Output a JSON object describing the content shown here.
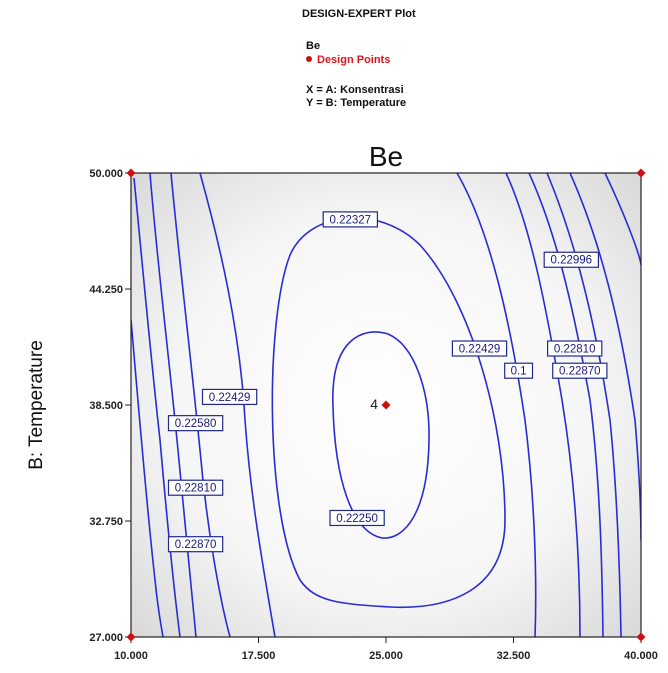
{
  "header": {
    "software": "DESIGN-EXPERT Plot",
    "response": "Be",
    "design_points_label": "Design Points",
    "x_def": "X = A: Konsentrasi",
    "y_def": "Y = B: Temperature"
  },
  "colors": {
    "contour": "#2b2bd6",
    "design_point": "#cc1010",
    "label_text": "#1a1a7a"
  },
  "chart_data": {
    "type": "contour",
    "title": "Be",
    "xlabel": "",
    "ylabel": "B: Temperature",
    "xlim": [
      10.0,
      40.0
    ],
    "ylim": [
      27.0,
      50.0
    ],
    "x_ticks": [
      "10.000",
      "17.500",
      "25.000",
      "32.500",
      "40.000"
    ],
    "y_ticks": [
      "27.000",
      "32.750",
      "38.500",
      "44.250",
      "50.000"
    ],
    "x_tick_values": [
      10.0,
      17.5,
      25.0,
      32.5,
      40.0
    ],
    "y_tick_values": [
      27.0,
      32.75,
      38.5,
      44.25,
      50.0
    ],
    "contour_labels": [
      {
        "text": "0.22327",
        "x": 22.9,
        "y": 47.7
      },
      {
        "text": "0.22996",
        "x": 35.9,
        "y": 45.7
      },
      {
        "text": "0.22429",
        "x": 30.5,
        "y": 41.3
      },
      {
        "text": "0.22810",
        "x": 36.1,
        "y": 41.3
      },
      {
        "text": "0.1",
        "x": 32.8,
        "y": 40.2
      },
      {
        "text": "0.22870",
        "x": 36.4,
        "y": 40.2
      },
      {
        "text": "0.22429",
        "x": 15.8,
        "y": 38.9
      },
      {
        "text": "0.22580",
        "x": 13.8,
        "y": 37.6
      },
      {
        "text": "0.22810",
        "x": 13.8,
        "y": 34.4
      },
      {
        "text": "0.22250",
        "x": 23.3,
        "y": 32.9
      },
      {
        "text": "0.22870",
        "x": 13.8,
        "y": 31.6
      }
    ],
    "design_points": [
      {
        "x": 10.0,
        "y": 27.0
      },
      {
        "x": 10.0,
        "y": 50.0
      },
      {
        "x": 40.0,
        "y": 27.0
      },
      {
        "x": 40.0,
        "y": 50.0
      },
      {
        "x": 25.0,
        "y": 38.5,
        "label": "4"
      }
    ]
  }
}
